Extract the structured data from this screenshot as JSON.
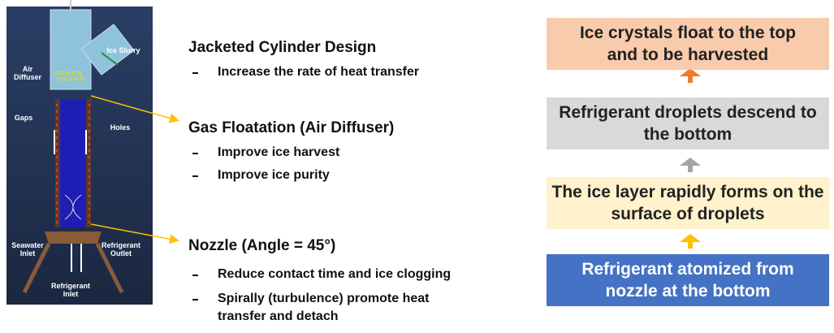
{
  "apparatus": {
    "labels": [
      "Ice Slurry",
      "Air Diffuser",
      "Gaps",
      "Holes",
      "Seawater Inlet",
      "Refrigerant Outlet",
      "Refrigerant Inlet"
    ]
  },
  "features": [
    {
      "title": "Jacketed Cylinder Design",
      "points": [
        "Increase the rate of heat transfer"
      ]
    },
    {
      "title": "Gas Floatation (Air Diffuser)",
      "points": [
        "Improve ice harvest",
        "Improve ice purity"
      ]
    },
    {
      "title": "Nozzle (Angle = 45°)",
      "points": [
        "Reduce contact time and ice clogging",
        "Spirally (turbulence) promote heat transfer and detach"
      ]
    }
  ],
  "process": [
    "Ice crystals float to the top and to be harvested",
    "Refrigerant droplets descend to the bottom",
    "The ice layer rapidly forms on the surface of droplets",
    "Refrigerant atomized from nozzle at the bottom"
  ]
}
